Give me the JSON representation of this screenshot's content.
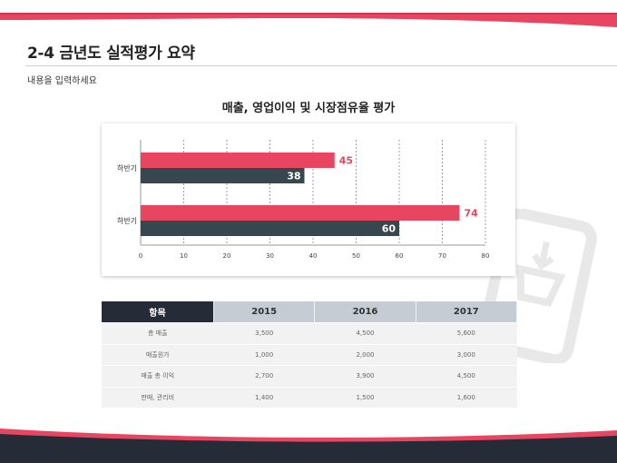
{
  "page": {
    "title": "2-4 금년도 실적평가 요약",
    "subtitle": "내용을 입력하세요"
  },
  "colors": {
    "accent": "#e84560",
    "dark": "#37474f",
    "header_dark": "#262c37",
    "header_light": "#c5ccd4"
  },
  "chart_data": {
    "type": "bar",
    "orientation": "horizontal",
    "title": "매출, 영업이익 및 시장점유율 평가",
    "categories": [
      "하반기",
      "하반기"
    ],
    "series": [
      {
        "values": [
          45,
          74
        ],
        "color": "#e84560"
      },
      {
        "values": [
          38,
          60
        ],
        "color": "#37474f"
      }
    ],
    "xlim": [
      0,
      80
    ],
    "xticks": [
      0,
      10,
      20,
      30,
      40,
      50,
      60,
      70,
      80
    ],
    "grid": "vertical-dashed"
  },
  "table": {
    "headers": [
      "항목",
      "2015",
      "2016",
      "2017"
    ],
    "rows": [
      [
        "총 매출",
        "3,500",
        "4,500",
        "5,600"
      ],
      [
        "매출원가",
        "1,000",
        "2,000",
        "3,000"
      ],
      [
        "매출 총 이익",
        "2,700",
        "3,900",
        "4,500"
      ],
      [
        "판매, 관리비",
        "1,400",
        "1,500",
        "1,600"
      ]
    ]
  }
}
